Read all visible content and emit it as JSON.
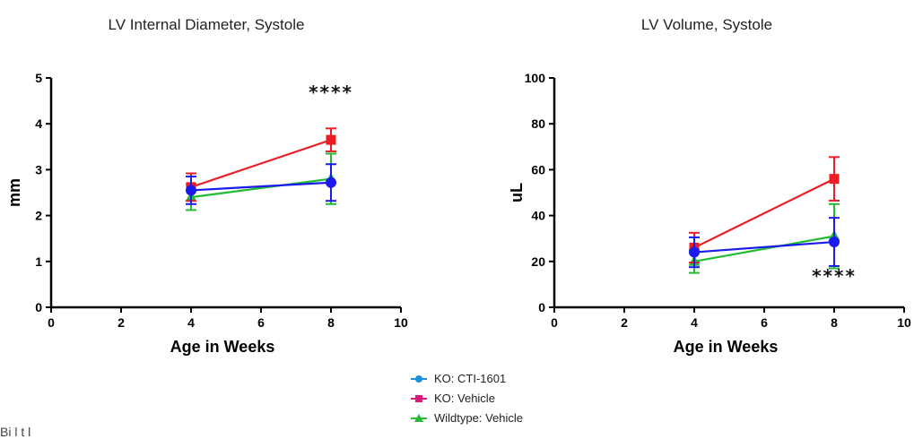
{
  "chart_data": [
    {
      "type": "line",
      "title": "LV Internal Diameter, Systole",
      "xlabel": "Age in Weeks",
      "ylabel": "mm",
      "xlim": [
        0,
        10
      ],
      "ylim": [
        0,
        5
      ],
      "xticks": [
        0,
        2,
        4,
        6,
        8,
        10
      ],
      "yticks": [
        0,
        1,
        2,
        3,
        4,
        5
      ],
      "annotation": {
        "text": "****",
        "x": 8,
        "y": 4.55
      },
      "series": [
        {
          "name": "Wildtype: Vehicle",
          "color": "#22bb33",
          "marker": "triangle",
          "x": [
            4,
            8
          ],
          "y": [
            2.4,
            2.8
          ],
          "err": [
            0.28,
            0.55
          ]
        },
        {
          "name": "KO: Vehicle",
          "color": "#ee1c24",
          "marker": "square",
          "x": [
            4,
            8
          ],
          "y": [
            2.62,
            3.65
          ],
          "err": [
            0.3,
            0.25
          ]
        },
        {
          "name": "KO: CTI-1601",
          "color": "#1a1aee",
          "marker": "circle",
          "x": [
            4,
            8
          ],
          "y": [
            2.55,
            2.72
          ],
          "err": [
            0.3,
            0.4
          ]
        }
      ]
    },
    {
      "type": "line",
      "title": "LV Volume, Systole",
      "xlabel": "Age in Weeks",
      "ylabel": "uL",
      "xlim": [
        0,
        10
      ],
      "ylim": [
        0,
        100
      ],
      "xticks": [
        0,
        2,
        4,
        6,
        8,
        10
      ],
      "yticks": [
        0,
        20,
        40,
        60,
        80,
        100
      ],
      "annotation": {
        "text": "****",
        "x": 8,
        "y": 11
      },
      "series": [
        {
          "name": "Wildtype: Vehicle",
          "color": "#22bb33",
          "marker": "triangle",
          "x": [
            4,
            8
          ],
          "y": [
            20,
            31
          ],
          "err": [
            5,
            14
          ]
        },
        {
          "name": "KO: Vehicle",
          "color": "#ee1c24",
          "marker": "square",
          "x": [
            4,
            8
          ],
          "y": [
            26,
            56
          ],
          "err": [
            6.5,
            9.5
          ]
        },
        {
          "name": "KO: CTI-1601",
          "color": "#1a1aee",
          "marker": "circle",
          "x": [
            4,
            8
          ],
          "y": [
            24,
            28.5
          ],
          "err": [
            6.5,
            10.5
          ]
        }
      ]
    }
  ],
  "legend": {
    "items": [
      {
        "label": "KO: CTI-1601",
        "color": "#1a90d8",
        "marker": "circle"
      },
      {
        "label": "KO: Vehicle",
        "color": "#d8197a",
        "marker": "square"
      },
      {
        "label": "Wildtype: Vehicle",
        "color": "#22bb33",
        "marker": "triangle"
      }
    ]
  },
  "footer_text": "Bi     l t l"
}
